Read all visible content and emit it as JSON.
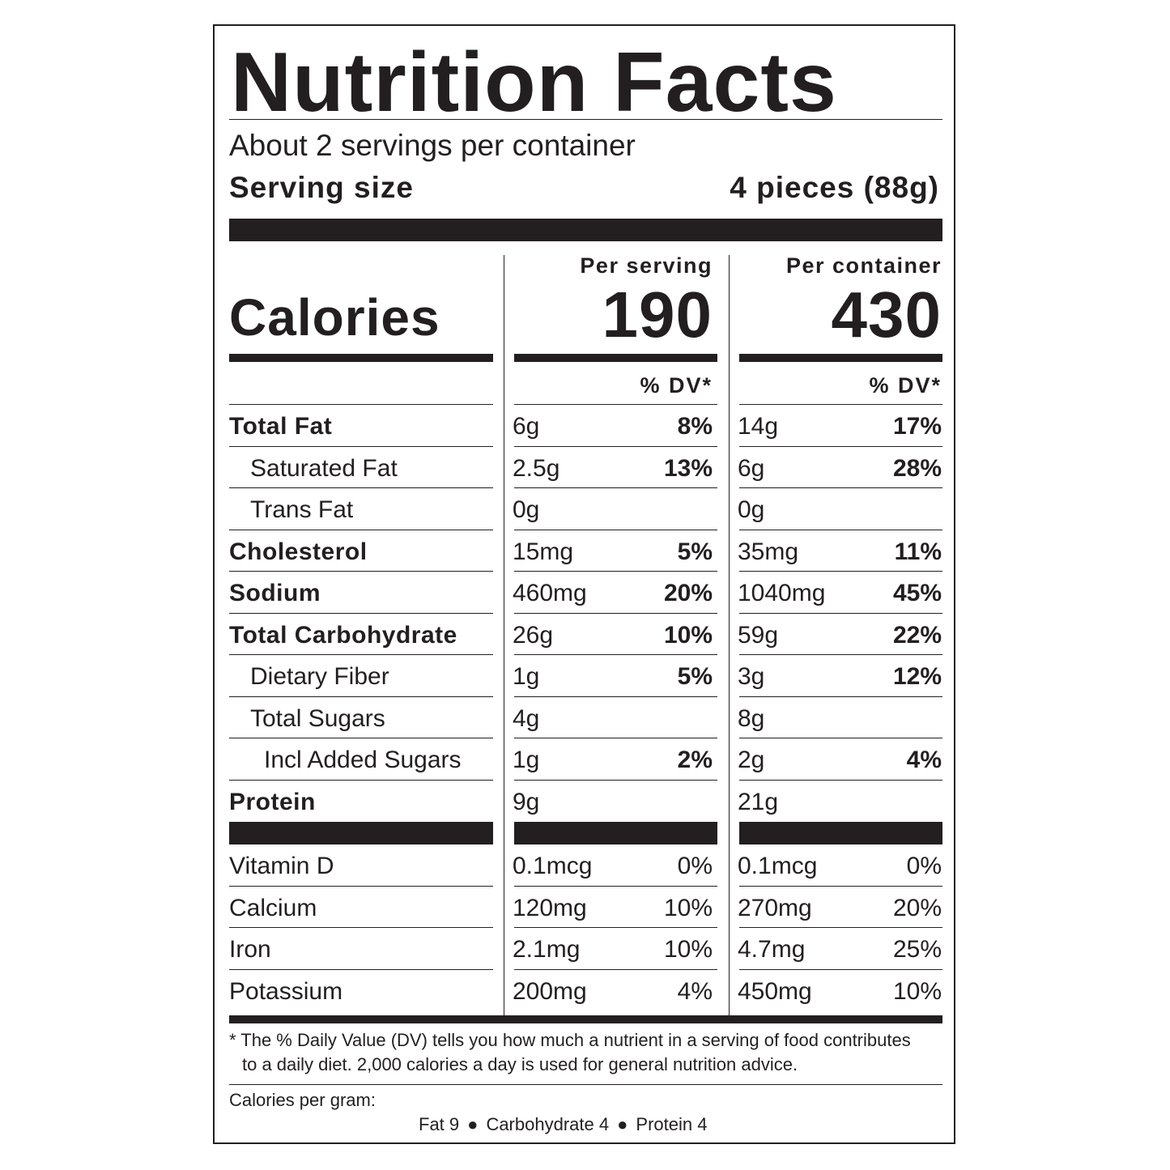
{
  "title": "Nutrition Facts",
  "servings_per_container": "About 2 servings per container",
  "serving_size_label": "Serving size",
  "serving_size_value": "4 pieces (88g)",
  "per_serving_label": "Per serving",
  "per_container_label": "Per container",
  "calories_label": "Calories",
  "calories_per_serving": "190",
  "calories_per_container": "430",
  "dv_header_1": "% DV*",
  "dv_header_2": "% DV*",
  "nutrients": [
    {
      "name": "Total Fat",
      "amount1": "6g",
      "dv1": "8%",
      "amount2": "14g",
      "dv2": "17%"
    },
    {
      "name": "Saturated Fat",
      "amount1": "2.5g",
      "dv1": "13%",
      "amount2": "6g",
      "dv2": "28%"
    },
    {
      "name": "Trans Fat",
      "amount1": "0g",
      "dv1": "",
      "amount2": "0g",
      "dv2": ""
    },
    {
      "name": "Cholesterol",
      "amount1": "15mg",
      "dv1": "5%",
      "amount2": "35mg",
      "dv2": "11%"
    },
    {
      "name": "Sodium",
      "amount1": "460mg",
      "dv1": "20%",
      "amount2": "1040mg",
      "dv2": "45%"
    },
    {
      "name": "Total Carbohydrate",
      "amount1": "26g",
      "dv1": "10%",
      "amount2": "59g",
      "dv2": "22%"
    },
    {
      "name": "Dietary Fiber",
      "amount1": "1g",
      "dv1": "5%",
      "amount2": "3g",
      "dv2": "12%"
    },
    {
      "name": "Total Sugars",
      "amount1": "4g",
      "dv1": "",
      "amount2": "8g",
      "dv2": ""
    },
    {
      "name": "Incl Added Sugars",
      "amount1": "1g",
      "dv1": "2%",
      "amount2": "2g",
      "dv2": "4%"
    },
    {
      "name": "Protein",
      "amount1": "9g",
      "dv1": "",
      "amount2": "21g",
      "dv2": ""
    }
  ],
  "vitamins": [
    {
      "name": "Vitamin D",
      "amount1": "0.1mcg",
      "dv1": "0%",
      "amount2": "0.1mcg",
      "dv2": "0%"
    },
    {
      "name": "Calcium",
      "amount1": "120mg",
      "dv1": "10%",
      "amount2": "270mg",
      "dv2": "20%"
    },
    {
      "name": "Iron",
      "amount1": "2.1mg",
      "dv1": "10%",
      "amount2": "4.7mg",
      "dv2": "25%"
    },
    {
      "name": "Potassium",
      "amount1": "200mg",
      "dv1": "4%",
      "amount2": "450mg",
      "dv2": "10%"
    }
  ],
  "footnote_line1": "* The % Daily Value (DV) tells you how much a nutrient in a serving of food contributes",
  "footnote_line2": "to a daily diet. 2,000 calories a day is used for general nutrition advice.",
  "calories_per_gram_label": "Calories per gram:",
  "cpg_fat": "Fat 9",
  "cpg_carb": "Carbohydrate 4",
  "cpg_protein": "Protein 4",
  "bullet": "●"
}
